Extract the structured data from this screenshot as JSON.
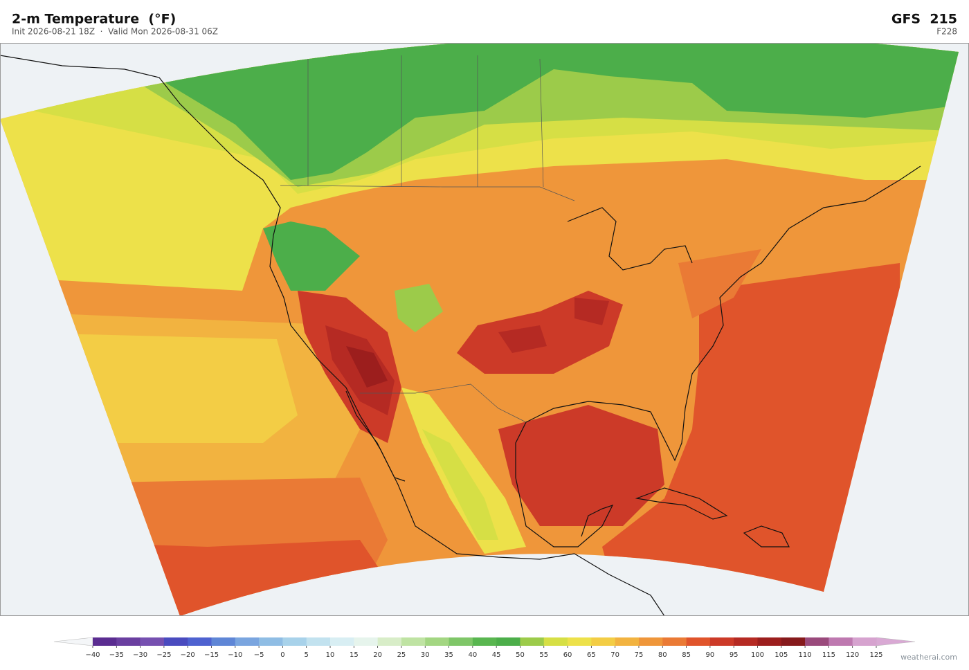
{
  "header": {
    "title": "2-m Temperature  (°F)",
    "subtitle": "Init 2026-08-21 18Z  ·  Valid Mon 2026-08-31 06Z",
    "model": "GFS  215",
    "forecast_hour": "F228"
  },
  "colorbar": {
    "lim": [
      -40,
      125
    ],
    "ticks": [
      {
        "value": -40,
        "label": "−40"
      },
      {
        "value": -35,
        "label": "−35"
      },
      {
        "value": -30,
        "label": "−30"
      },
      {
        "value": -25,
        "label": "−25"
      },
      {
        "value": -20,
        "label": "−20"
      },
      {
        "value": -15,
        "label": "−15"
      },
      {
        "value": -10,
        "label": "−10"
      },
      {
        "value": -5,
        "label": "−5"
      },
      0,
      5,
      10,
      15,
      20,
      25,
      30,
      35,
      40,
      45,
      50,
      55,
      60,
      65,
      70,
      75,
      80,
      85,
      90,
      95,
      100,
      105,
      110,
      115,
      120,
      125
    ],
    "colors": [
      "#5b2d91",
      "#6a3fa0",
      "#7650b0",
      "#4a4bbf",
      "#4e62d0",
      "#5f86d6",
      "#7aa5df",
      "#8fbde4",
      "#a8d2ea",
      "#c2e2ef",
      "#d8eef3",
      "#e6f4ec",
      "#d8edc8",
      "#bfe3a3",
      "#a3d682",
      "#7fc668",
      "#59b650",
      "#4cae4a",
      "#9ccb4a",
      "#d6df45",
      "#ede14a",
      "#f3cd45",
      "#f2b340",
      "#ef963a",
      "#ea7a35",
      "#e0542b",
      "#cc3a28",
      "#b52a23",
      "#9c1e1d",
      "#861a1c",
      "#9a4a7c",
      "#be79b0",
      "#d6a3cf"
    ],
    "under_color": "#f4f6f8",
    "over_color": "#d9a9d4"
  },
  "footer": {
    "credit": "weatherai.com"
  }
}
